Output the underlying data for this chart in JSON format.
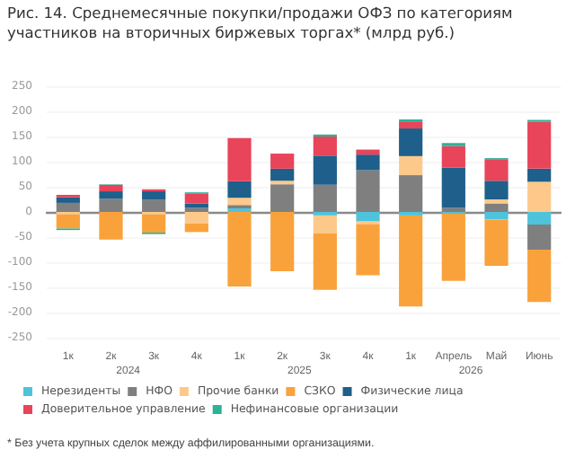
{
  "chart_data": {
    "type": "bar",
    "stacked": true,
    "title": "Рис. 14. Среднемесячные покупки/продажи ОФЗ по категориям участников на вторичных биржевых торгах* (млрд руб.)",
    "categories": [
      "1к",
      "2к",
      "3к",
      "4к",
      "1к",
      "2к",
      "3к",
      "4к",
      "1к",
      "Апрель",
      "Май",
      "Июнь"
    ],
    "series": [
      {
        "name": "Нерезиденты",
        "color": "#4fc3dc",
        "values": [
          0,
          0,
          0,
          0,
          7,
          0,
          -7,
          -19,
          -7,
          -3,
          -15,
          -25
        ]
      },
      {
        "name": "НФО",
        "color": "#7f7f7f",
        "values": [
          18,
          26,
          24,
          8,
          7,
          55,
          54,
          83,
          73,
          8,
          17,
          -50
        ]
      },
      {
        "name": "Прочие банки",
        "color": "#fdc98a",
        "values": [
          -5,
          0,
          -5,
          -23,
          14,
          7,
          -36,
          -5,
          38,
          0,
          8,
          60
        ]
      },
      {
        "name": "СЗКО",
        "color": "#f9a23c",
        "values": [
          -28,
          -55,
          -36,
          -17,
          -148,
          -118,
          -112,
          -102,
          -181,
          -134,
          -92,
          -104
        ]
      },
      {
        "name": "Физические лица",
        "color": "#1f5f8b",
        "values": [
          11,
          15,
          17,
          9,
          33,
          24,
          58,
          31,
          55,
          80,
          37,
          26
        ]
      },
      {
        "name": "Доверительное управление",
        "color": "#e8445a",
        "values": [
          5,
          13,
          4,
          20,
          86,
          30,
          38,
          10,
          14,
          43,
          43,
          93
        ]
      },
      {
        "name": "Нефинансовые организации",
        "color": "#2bb39a",
        "values": [
          -3,
          1,
          -3,
          2,
          0,
          0,
          4,
          0,
          4,
          6,
          2,
          4
        ]
      }
    ],
    "ylim": [
      -250,
      250
    ],
    "yticks": [
      -250,
      -200,
      -150,
      -100,
      -50,
      0,
      50,
      100,
      150,
      200,
      250
    ],
    "grid": "y",
    "legend": "bottom",
    "annotations": [
      "2024",
      "2025",
      "2026",
      "* Без учета крупных сделок между аффилированными организациями."
    ]
  }
}
